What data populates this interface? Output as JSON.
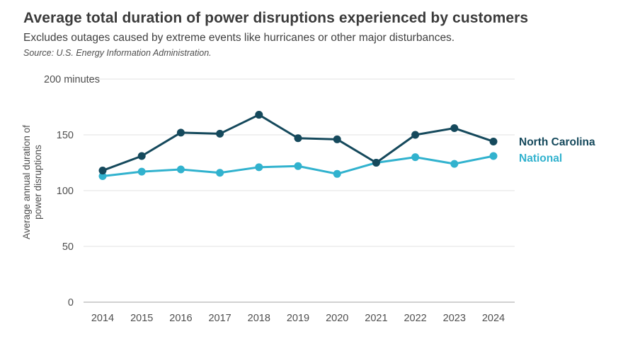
{
  "header": {
    "title": "Average total duration of power disruptions experienced by customers",
    "subtitle": "Excludes outages caused by extreme events like hurricanes or other major disturbances.",
    "source": "Source: U.S. Energy Information Administration."
  },
  "colors": {
    "north_carolina": "#15495c",
    "national": "#31b2ce",
    "grid": "#e6e6e6",
    "baseline": "#c2c2c2",
    "tick_text": "#4f4f4f"
  },
  "chart_data": {
    "type": "line",
    "categories": [
      "2014",
      "2015",
      "2016",
      "2017",
      "2018",
      "2019",
      "2020",
      "2021",
      "2022",
      "2023",
      "2024"
    ],
    "series": [
      {
        "name": "North Carolina",
        "color_key": "north_carolina",
        "values": [
          118,
          131,
          152,
          151,
          168,
          147,
          146,
          125,
          150,
          156,
          144
        ]
      },
      {
        "name": "National",
        "color_key": "national",
        "values": [
          113,
          117,
          119,
          116,
          121,
          122,
          115,
          125,
          130,
          124,
          131
        ]
      }
    ],
    "ylabel_lines": [
      "Average annual duration of",
      "power disruptions"
    ],
    "y_ticks": [
      0,
      50,
      100,
      150
    ],
    "top_tick_label": "200 minutes",
    "ylim": [
      0,
      200
    ],
    "grid": true,
    "legend_position": "right",
    "marker": "circle"
  }
}
